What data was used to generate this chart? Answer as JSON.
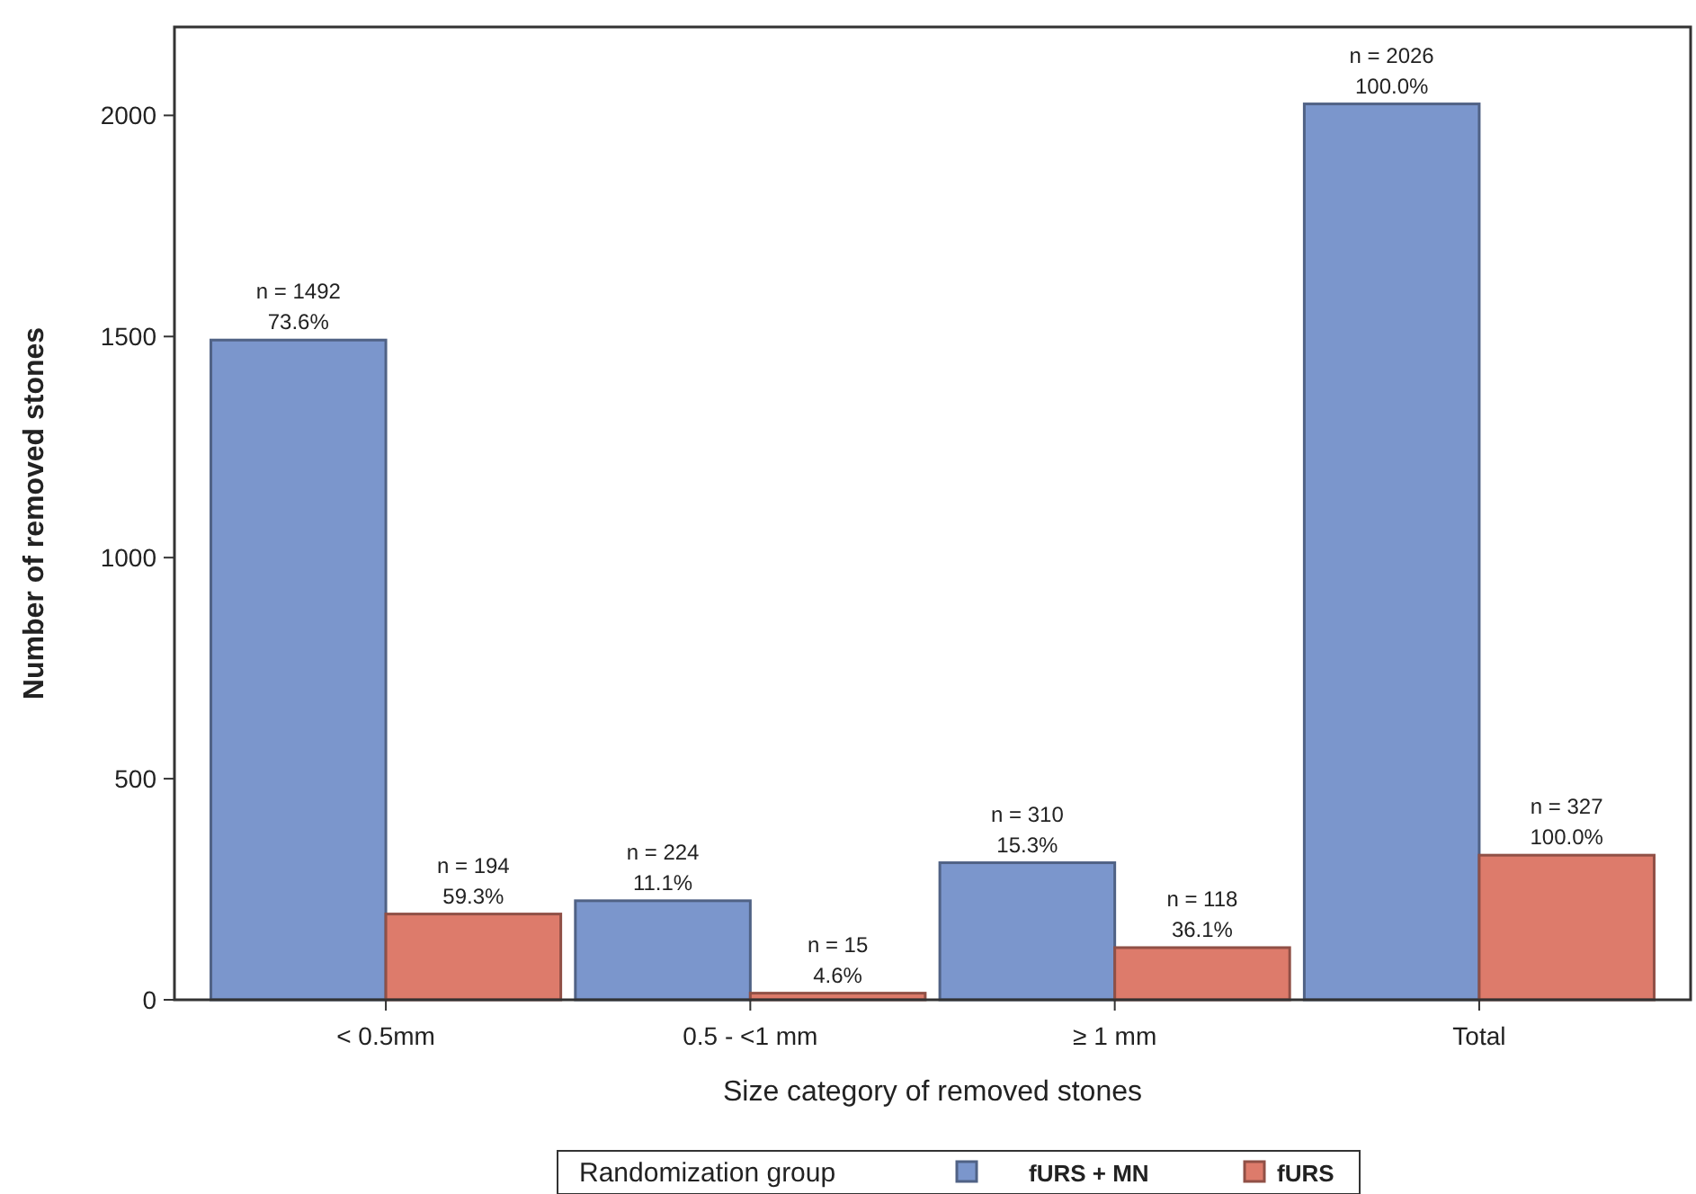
{
  "chart_data": {
    "type": "bar",
    "xlabel": "Size category of removed stones",
    "ylabel": "Number of removed stones",
    "categories": [
      "< 0.5mm",
      "0.5 - <1 mm",
      "≥ 1 mm",
      "Total"
    ],
    "series": [
      {
        "name": "fURS + MN",
        "color": "#7b96cc",
        "values": [
          1492,
          224,
          310,
          2026
        ],
        "value_labels": [
          "n = 1492",
          "n = 224",
          "n = 310",
          "n = 2026"
        ]
      },
      {
        "name": "fURS",
        "color": "#dd7b6b",
        "values": [
          194,
          15,
          118,
          327
        ],
        "value_labels": [
          "n = 194",
          "n = 15",
          "n = 118",
          "n = 327"
        ]
      }
    ],
    "annotations": [
      {
        "text": "73.6%",
        "x": "< 0.5mm",
        "y": 1492
      },
      {
        "text": "11.1%",
        "x": "0.5 - <1 mm",
        "y": 224
      },
      {
        "text": "15.3%",
        "x": "≥ 1 mm",
        "y": 310
      },
      {
        "text": "100.0%",
        "x": "Total",
        "y": 2026
      },
      {
        "text": "59.3%",
        "x": "< 0.5mm",
        "y": 194
      },
      {
        "text": "4.6%",
        "x": "0.5 - <1 mm",
        "y": 15
      },
      {
        "text": "36.1%",
        "x": "≥ 1 mm",
        "y": 118
      },
      {
        "text": "100.0%",
        "x": "Total",
        "y": 327
      }
    ],
    "ylim": [
      0,
      2200
    ],
    "yticks": [
      0,
      500,
      1000,
      1500,
      2000
    ],
    "grid": false,
    "legend": "bottom",
    "legend_title": "Randomization group"
  }
}
